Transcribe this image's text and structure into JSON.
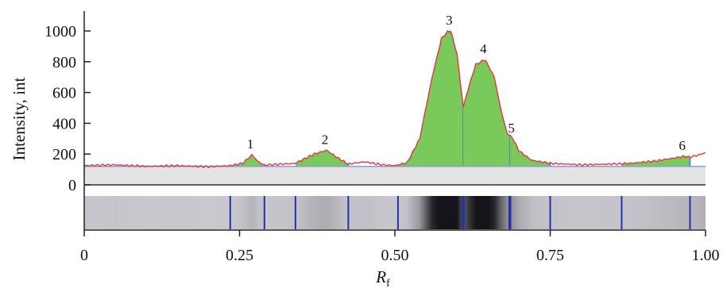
{
  "chart_data": {
    "type": "area",
    "xlabel": "R",
    "xlabel_sub": "f",
    "ylabel": "Intensity, int",
    "xlim": [
      0,
      1.0
    ],
    "ylim": [
      0,
      1000
    ],
    "x_ticks": [
      "0",
      "0.25",
      "0.50",
      "0.75",
      "1.00"
    ],
    "y_ticks": [
      "0",
      "200",
      "400",
      "600",
      "800",
      "1000"
    ],
    "baseline": 120,
    "grid": false,
    "colors": {
      "trace": "#e8343c",
      "peak_fill": "#79c95b",
      "peak_edge": "#4a6fd6",
      "baseline": "#8a9be0",
      "lane_mark": "#2233aa"
    },
    "peaks": [
      {
        "label": "1",
        "rf": 0.27,
        "height": 195,
        "start": 0.235,
        "end": 0.29
      },
      {
        "label": "2",
        "rf": 0.39,
        "height": 225,
        "start": 0.34,
        "end": 0.425
      },
      {
        "label": "3",
        "rf": 0.59,
        "height": 1000,
        "start": 0.505,
        "end": 0.61
      },
      {
        "label": "4",
        "rf": 0.645,
        "height": 815,
        "start": 0.61,
        "end": 0.685
      },
      {
        "label": "5",
        "rf": 0.69,
        "height": 300,
        "start": 0.685,
        "end": 0.75
      },
      {
        "label": "6",
        "rf": 0.965,
        "height": 185,
        "start": 0.865,
        "end": 0.975
      }
    ],
    "lane_boundaries": [
      0.235,
      0.29,
      0.34,
      0.425,
      0.505,
      0.61,
      0.685,
      0.75,
      0.865,
      0.975
    ],
    "trace": {
      "x": [
        0,
        0.05,
        0.1,
        0.15,
        0.2,
        0.235,
        0.255,
        0.27,
        0.28,
        0.29,
        0.32,
        0.34,
        0.37,
        0.39,
        0.41,
        0.425,
        0.45,
        0.48,
        0.5,
        0.52,
        0.54,
        0.56,
        0.575,
        0.585,
        0.59,
        0.6,
        0.61,
        0.62,
        0.63,
        0.645,
        0.66,
        0.67,
        0.68,
        0.69,
        0.7,
        0.72,
        0.75,
        0.8,
        0.85,
        0.88,
        0.92,
        0.95,
        0.965,
        0.975,
        0.99,
        1.0
      ],
      "y": [
        125,
        130,
        120,
        125,
        118,
        125,
        140,
        195,
        150,
        128,
        135,
        140,
        200,
        225,
        170,
        135,
        150,
        130,
        125,
        145,
        300,
        700,
        950,
        995,
        1000,
        850,
        505,
        650,
        780,
        815,
        700,
        500,
        340,
        300,
        220,
        160,
        140,
        130,
        135,
        140,
        155,
        175,
        185,
        180,
        195,
        210
      ]
    }
  }
}
